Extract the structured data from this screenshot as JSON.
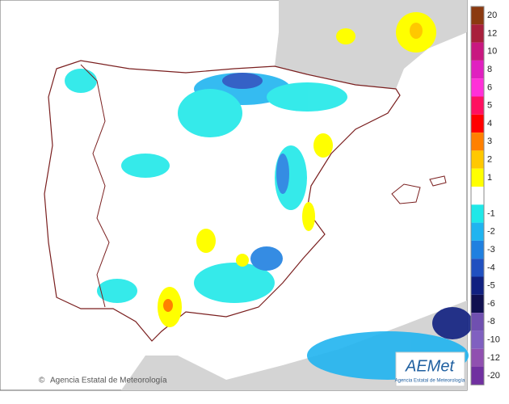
{
  "legend": [
    {
      "value": 20,
      "color": "#8b3a10"
    },
    {
      "value": 12,
      "color": "#a8203c"
    },
    {
      "value": 10,
      "color": "#c81880"
    },
    {
      "value": 8,
      "color": "#e020c0"
    },
    {
      "value": 6,
      "color": "#ff30d8"
    },
    {
      "value": 5,
      "color": "#ff1060"
    },
    {
      "value": 4,
      "color": "#ff0000"
    },
    {
      "value": 3,
      "color": "#ff8000"
    },
    {
      "value": 2,
      "color": "#ffc800"
    },
    {
      "value": 1,
      "color": "#ffff00"
    },
    {
      "value": -1,
      "color": "#20e8e8"
    },
    {
      "value": -2,
      "color": "#20b4f0"
    },
    {
      "value": -3,
      "color": "#2080e0"
    },
    {
      "value": -4,
      "color": "#2050c0"
    },
    {
      "value": -5,
      "color": "#102080"
    },
    {
      "value": -6,
      "color": "#101050"
    },
    {
      "value": -8,
      "color": "#7050b0"
    },
    {
      "value": -10,
      "color": "#8060c0"
    },
    {
      "value": -12,
      "color": "#9050b0"
    },
    {
      "value": -20,
      "color": "#7030a0"
    }
  ],
  "footer": {
    "credit": "Agencia Estatal de Meteorología"
  },
  "logo": {
    "name": "AEMet",
    "subtitle": "Agencia Estatal de Meteorología"
  }
}
